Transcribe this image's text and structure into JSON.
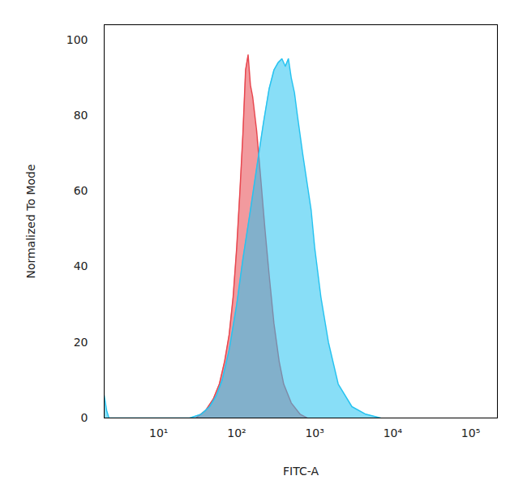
{
  "chart_data": {
    "type": "area",
    "x_label": "FITC-A",
    "y_label": "Normalized To Mode",
    "log": "x",
    "grid": false,
    "xlim": [
      2,
      220000
    ],
    "xticks": [
      {
        "value": 10,
        "label": "10¹"
      },
      {
        "value": 100,
        "label": "10²"
      },
      {
        "value": 1000,
        "label": "10³"
      },
      {
        "value": 10000,
        "label": "10⁴"
      },
      {
        "value": 100000,
        "label": "10⁵"
      }
    ],
    "ylim": [
      0,
      104
    ],
    "yticks": [
      0,
      20,
      40,
      60,
      80,
      100
    ],
    "series": [
      {
        "color": "#e8474f",
        "x": [
          30,
          40,
          50,
          60,
          70,
          80,
          90,
          100,
          110,
          120,
          130,
          140,
          150,
          160,
          180,
          200,
          230,
          260,
          300,
          350,
          400,
          500,
          650,
          800
        ],
        "values": [
          0,
          2,
          5,
          9,
          15,
          22,
          32,
          45,
          60,
          75,
          92,
          96,
          88,
          85,
          76,
          65,
          50,
          38,
          25,
          15,
          9,
          4,
          1,
          0
        ]
      },
      {
        "color": "#27c3f0",
        "x": [
          2,
          2.15,
          2.3,
          25,
          35,
          45,
          55,
          65,
          80,
          100,
          120,
          150,
          180,
          220,
          260,
          300,
          340,
          380,
          420,
          460,
          500,
          550,
          600,
          700,
          800,
          900,
          1000,
          1200,
          1500,
          2000,
          3000,
          4500,
          7000
        ],
        "values": [
          6,
          2,
          0,
          0,
          1,
          3,
          6,
          10,
          18,
          30,
          42,
          55,
          66,
          78,
          87,
          92,
          94,
          95,
          93,
          95,
          90,
          86,
          80,
          70,
          62,
          55,
          45,
          32,
          20,
          9,
          3,
          1,
          0
        ]
      }
    ]
  }
}
